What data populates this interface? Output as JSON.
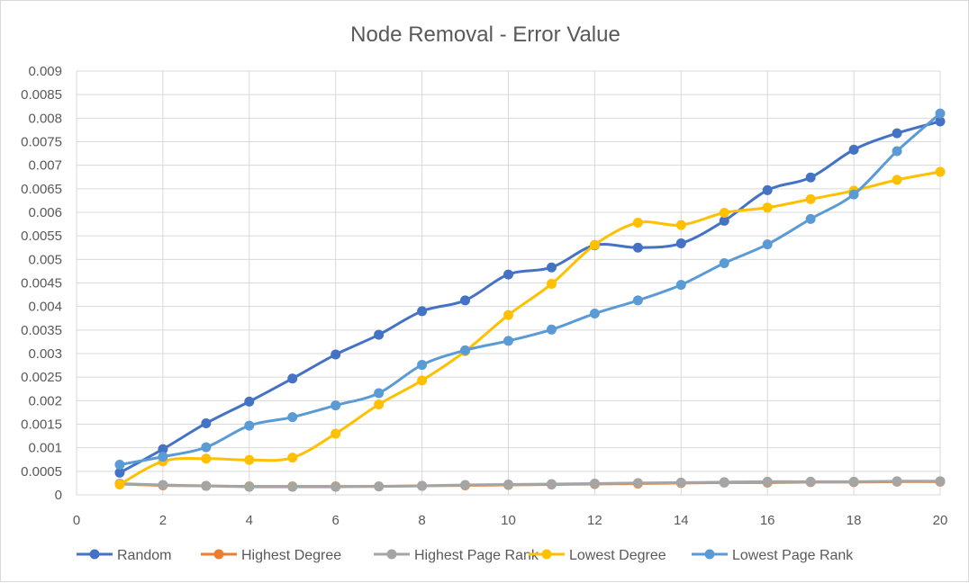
{
  "chart_data": {
    "type": "scatter",
    "title": "Node Removal - Error Value",
    "xlabel": "",
    "ylabel": "",
    "xlim": [
      0,
      20
    ],
    "ylim": [
      0,
      0.009
    ],
    "x_ticks": [
      0,
      2,
      4,
      6,
      8,
      10,
      12,
      14,
      16,
      18,
      20
    ],
    "y_ticks": [
      0,
      0.0005,
      0.001,
      0.0015,
      0.002,
      0.0025,
      0.003,
      0.0035,
      0.004,
      0.0045,
      0.005,
      0.0055,
      0.006,
      0.0065,
      0.007,
      0.0075,
      0.008,
      0.0085,
      0.009
    ],
    "grid": true,
    "legend_position": "bottom",
    "x": [
      1,
      2,
      3,
      4,
      5,
      6,
      7,
      8,
      9,
      10,
      11,
      12,
      13,
      14,
      15,
      16,
      17,
      18,
      19,
      20
    ],
    "series": [
      {
        "name": "Random",
        "color": "#4472C4",
        "values": [
          0.00047,
          0.00097,
          0.00152,
          0.00198,
          0.00247,
          0.00298,
          0.0034,
          0.0039,
          0.00413,
          0.00468,
          0.00483,
          0.0053,
          0.00525,
          0.00534,
          0.00582,
          0.00647,
          0.00674,
          0.00733,
          0.00768,
          0.00793
        ]
      },
      {
        "name": "Highest Degree",
        "color": "#ED7D31",
        "values": [
          0.00023,
          0.0002,
          0.00019,
          0.00018,
          0.00018,
          0.00018,
          0.00018,
          0.00019,
          0.0002,
          0.00021,
          0.00022,
          0.00023,
          0.00024,
          0.00025,
          0.00026,
          0.00026,
          0.00027,
          0.00027,
          0.00028,
          0.00028
        ]
      },
      {
        "name": "Highest Page Rank",
        "color": "#A5A5A5",
        "values": [
          0.00024,
          0.00021,
          0.00019,
          0.00017,
          0.00017,
          0.00017,
          0.00018,
          0.00019,
          0.00021,
          0.00022,
          0.00023,
          0.00024,
          0.00025,
          0.00026,
          0.00027,
          0.00028,
          0.00028,
          0.00028,
          0.00029,
          0.00029
        ]
      },
      {
        "name": "Lowest Degree",
        "color": "#FFC000",
        "values": [
          0.00022,
          0.00071,
          0.00077,
          0.00074,
          0.00079,
          0.0013,
          0.00192,
          0.00243,
          0.00305,
          0.00382,
          0.00448,
          0.00531,
          0.00578,
          0.00573,
          0.00599,
          0.0061,
          0.00628,
          0.00646,
          0.00669,
          0.00686
        ]
      },
      {
        "name": "Lowest Page Rank",
        "color": "#5B9BD5",
        "values": [
          0.00064,
          0.00081,
          0.00101,
          0.00147,
          0.00165,
          0.0019,
          0.00216,
          0.00276,
          0.00307,
          0.00327,
          0.00351,
          0.00385,
          0.00413,
          0.00446,
          0.00492,
          0.00532,
          0.00586,
          0.00638,
          0.0073,
          0.0081
        ]
      }
    ]
  }
}
